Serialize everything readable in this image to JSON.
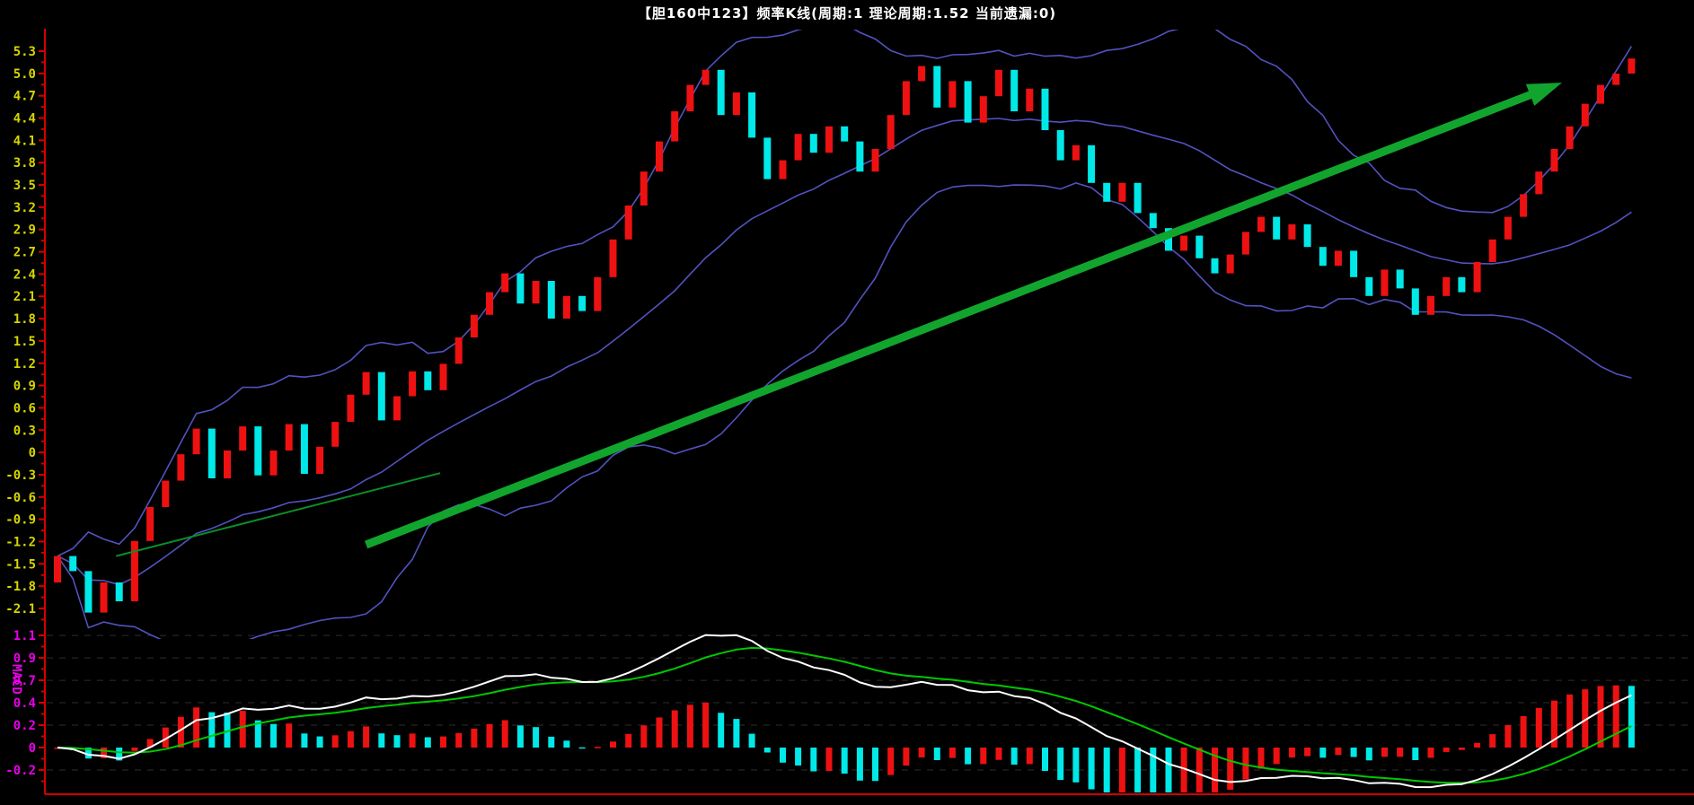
{
  "title": "【胆160中123】频率K线(周期:1  理论周期:1.52  当前遗漏:0)",
  "colors": {
    "background": "#000000",
    "axis_red": "#d40000",
    "up_candle": "#ee1111",
    "down_candle": "#00e8e8",
    "boll_band": "#5252c0",
    "trend_arrow_green": "#12a52e",
    "trend_line_green": "#0a8f26",
    "dif_line": "#ffffff",
    "dea_line": "#00c800",
    "main_label_yellow": "#d6d600",
    "macd_label_magenta": "#e800e8",
    "grid_dash": "#2e2e2e"
  },
  "main_panel": {
    "y_axis_labels": [
      "5.3",
      "5.0",
      "4.7",
      "4.4",
      "4.1",
      "3.8",
      "3.5",
      "3.2",
      "2.9",
      "2.7",
      "2.4",
      "2.1",
      "1.8",
      "1.5",
      "1.2",
      "0.9",
      "0.6",
      "0.3",
      "0",
      "-0.3",
      "-0.6",
      "-0.9",
      "-1.2",
      "-1.5",
      "-1.8",
      "-2.1"
    ]
  },
  "macd_panel": {
    "indicator_label": "MACD",
    "y_axis_labels": [
      "1.1",
      "0.9",
      "0.7",
      "0.4",
      "0.2",
      "0",
      "-0.2"
    ],
    "y_axis_values": [
      1.125,
      0.9,
      0.675,
      0.45,
      0.225,
      0,
      -0.225
    ]
  },
  "chart_data": {
    "type": "candlestick",
    "title": "频率K线",
    "period": "1",
    "theoretical_period": "1.52",
    "current_missed": "0",
    "value_axis": {
      "min": -2.1,
      "max": 5.3
    },
    "macd_axis": {
      "min": -0.225,
      "max": 1.125
    },
    "open_first": -1.75,
    "closes": [
      -1.4,
      -1.6,
      -2.15,
      -1.75,
      -2.0,
      -1.2,
      -0.75,
      -0.4,
      -0.05,
      0.29,
      -0.37,
      0.0,
      0.32,
      -0.33,
      0.0,
      0.35,
      -0.31,
      0.05,
      0.38,
      0.74,
      1.04,
      0.4,
      0.72,
      1.05,
      0.8,
      1.15,
      1.5,
      1.8,
      2.1,
      2.35,
      1.95,
      2.25,
      1.75,
      2.05,
      1.85,
      2.3,
      2.8,
      3.25,
      3.7,
      4.1,
      4.5,
      4.85,
      5.05,
      4.45,
      4.75,
      4.15,
      3.6,
      3.85,
      4.2,
      3.95,
      4.3,
      4.1,
      3.7,
      4.0,
      4.45,
      4.9,
      5.1,
      4.55,
      4.9,
      4.35,
      4.7,
      5.05,
      4.5,
      4.8,
      4.25,
      3.85,
      4.05,
      3.55,
      3.3,
      3.55,
      3.15,
      2.95,
      2.65,
      2.85,
      2.55,
      2.35,
      2.6,
      2.9,
      3.1,
      2.8,
      3.0,
      2.7,
      2.45,
      2.65,
      2.3,
      2.05,
      2.4,
      2.15,
      1.8,
      2.05,
      2.3,
      2.1,
      2.5,
      2.8,
      3.1,
      3.4,
      3.7,
      4.0,
      4.3,
      4.6,
      4.85,
      5.0,
      5.2
    ],
    "indicators": {
      "boll": {
        "period": 20,
        "mult": 2
      },
      "macd": {
        "fast": 12,
        "slow": 26,
        "signal": 9,
        "hist_scale": 2
      }
    },
    "annotations": {
      "trend_line": {
        "i1": 3.8,
        "v1": -1.4,
        "i2": 24.8,
        "v2": -0.3
      },
      "trend_arrow": {
        "i1": 20.0,
        "v1": -1.25,
        "i2": 97.5,
        "v2": 4.88
      }
    }
  }
}
